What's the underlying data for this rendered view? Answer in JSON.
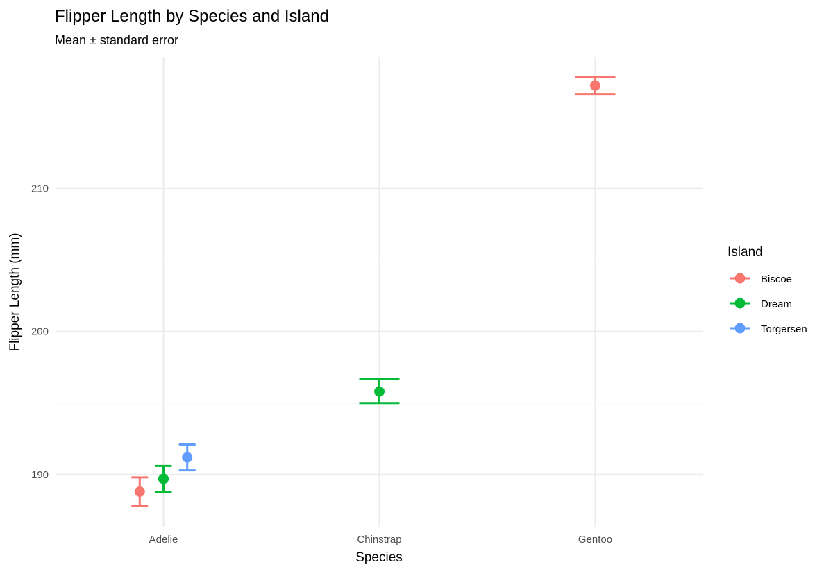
{
  "chart_data": {
    "type": "scatter",
    "title": "Flipper Length by Species and Island",
    "subtitle": "Mean ± standard error",
    "xlabel": "Species",
    "ylabel": "Flipper Length (mm)",
    "categories": [
      "Adelie",
      "Chinstrap",
      "Gentoo"
    ],
    "ylim": [
      186.3,
      219.2
    ],
    "yticks": [
      190,
      200,
      210
    ],
    "ytick_labels": [
      "190",
      "200",
      "210"
    ],
    "grid": true,
    "legend": {
      "title": "Island",
      "placement": "right"
    },
    "series": [
      {
        "name": "Biscoe",
        "color": "#F8766D",
        "points": [
          {
            "category": "Adelie",
            "mean": 188.8,
            "lo": 187.8,
            "hi": 189.8
          },
          {
            "category": "Gentoo",
            "mean": 217.2,
            "lo": 216.6,
            "hi": 217.8
          }
        ]
      },
      {
        "name": "Dream",
        "color": "#00BA38",
        "points": [
          {
            "category": "Adelie",
            "mean": 189.7,
            "lo": 188.8,
            "hi": 190.6
          },
          {
            "category": "Chinstrap",
            "mean": 195.8,
            "lo": 195.0,
            "hi": 196.7
          }
        ]
      },
      {
        "name": "Torgersen",
        "color": "#619CFF",
        "points": [
          {
            "category": "Adelie",
            "mean": 191.2,
            "lo": 190.3,
            "hi": 192.1
          }
        ]
      }
    ]
  }
}
